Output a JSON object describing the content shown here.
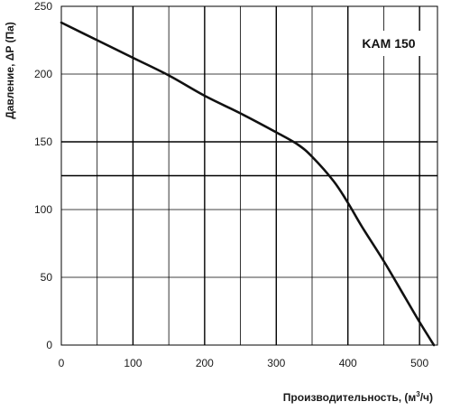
{
  "chart_data": {
    "type": "line",
    "title": "",
    "model_label": "KAM 150",
    "ylabel": "Давление, ΔP (Па)",
    "xlabel_main": "Производительность, (м",
    "xlabel_sup": "3",
    "xlabel_end": "/ч)",
    "xlim": [
      0,
      525
    ],
    "ylim": [
      0,
      250
    ],
    "x_ticks": [
      0,
      100,
      200,
      300,
      400,
      500
    ],
    "y_ticks": [
      0,
      50,
      100,
      150,
      200,
      250
    ],
    "grid": true,
    "grid_x_step": 50,
    "grid_y_step": 50,
    "highlight_y": [
      150,
      125
    ],
    "series": [
      {
        "values": [
          [
            0,
            238
          ],
          [
            50,
            225
          ],
          [
            100,
            212
          ],
          [
            150,
            199
          ],
          [
            200,
            184
          ],
          [
            250,
            171
          ],
          [
            300,
            157
          ],
          [
            330,
            148
          ],
          [
            350,
            139
          ],
          [
            380,
            121
          ],
          [
            400,
            105
          ],
          [
            420,
            87
          ],
          [
            450,
            62
          ],
          [
            480,
            35
          ],
          [
            500,
            17
          ],
          [
            520,
            0
          ]
        ]
      }
    ],
    "line_color": "#111111",
    "grid_color": "#000000"
  }
}
